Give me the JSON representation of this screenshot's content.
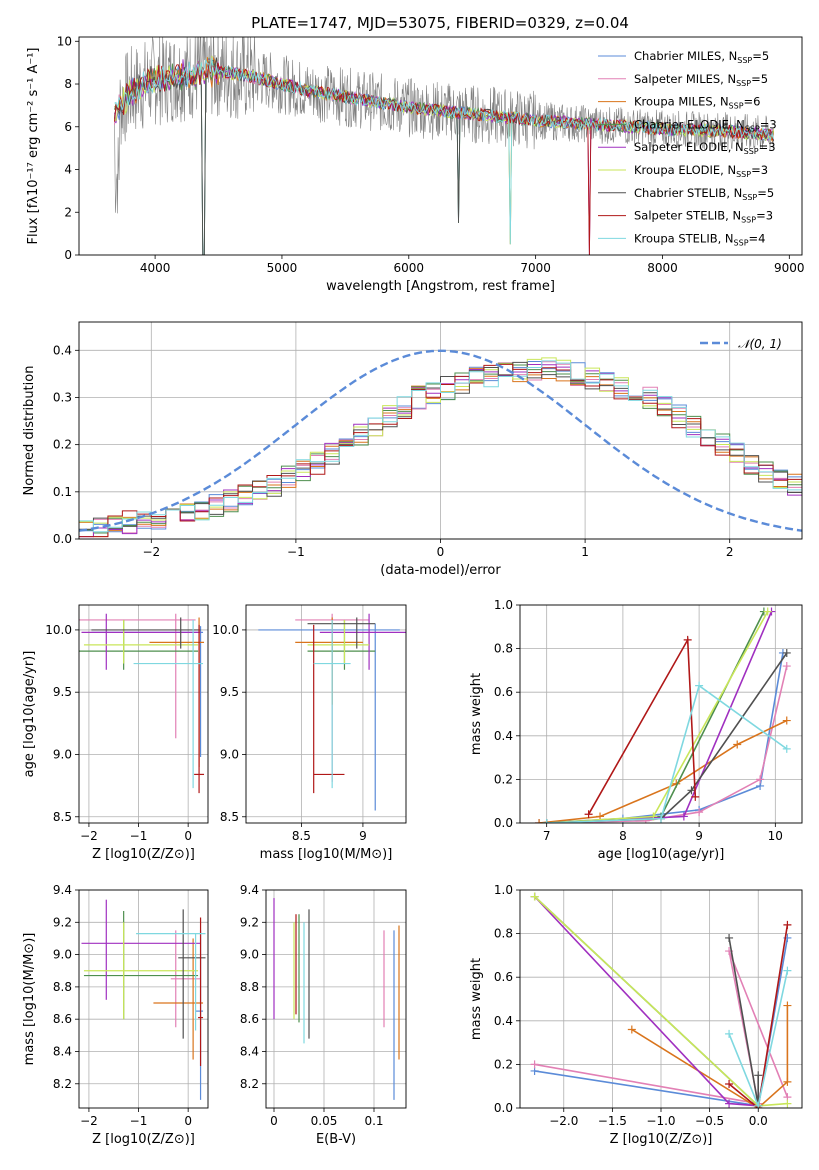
{
  "chart_data": [
    {
      "type": "line",
      "title": "PLATE=1747, MJD=53075, FIBERID=0329, z=0.04",
      "xlabel": "wavelength [Angstrom, rest frame]",
      "ylabel": "Flux [fλ10⁻¹⁷ erg cm⁻² s⁻¹ A⁻¹]",
      "xlim": [
        3400,
        9100
      ],
      "ylim": [
        0,
        10.2
      ],
      "xticks": [
        4000,
        5000,
        6000,
        7000,
        8000,
        9000
      ],
      "yticks": [
        0,
        2,
        4,
        6,
        8,
        10
      ],
      "legend_position": "top-right",
      "data_series": {
        "name": "",
        "color": "#808080",
        "x_range": [
          3680,
          8880
        ],
        "note_values": [
          7.0,
          8.6,
          8.0,
          7.2,
          6.5,
          6.1,
          5.9,
          5.6
        ]
      },
      "series": [
        {
          "label": "Chabrier MILES, N",
          "sub": "SSP",
          "tail": "=5",
          "color": "#5b8bd8"
        },
        {
          "label": "Salpeter MILES, N",
          "sub": "SSP",
          "tail": "=5",
          "color": "#e280b5"
        },
        {
          "label": "Kroupa MILES, N",
          "sub": "SSP",
          "tail": "=6",
          "color": "#d9741c"
        },
        {
          "label": "Chabrier ELODIE, N",
          "sub": "SSP",
          "tail": "=3",
          "color": "#4e8f4e"
        },
        {
          "label": "Salpeter ELODIE, N",
          "sub": "SSP",
          "tail": "=3",
          "color": "#a030c0"
        },
        {
          "label": "Kroupa ELODIE, N",
          "sub": "SSP",
          "tail": "=3",
          "color": "#c9e65a"
        },
        {
          "label": "Chabrier STELIB, N",
          "sub": "SSP",
          "tail": "=5",
          "color": "#505050"
        },
        {
          "label": "Salpeter STELIB, N",
          "sub": "SSP",
          "tail": "=3",
          "color": "#b01818"
        },
        {
          "label": "Kroupa STELIB, N",
          "sub": "SSP",
          "tail": "=4",
          "color": "#7fd8e0"
        }
      ],
      "model_curve": {
        "x": [
          3680,
          3800,
          4000,
          4200,
          4500,
          4800,
          5200,
          5600,
          6000,
          6500,
          7000,
          7500,
          8000,
          8500,
          8880
        ],
        "y": [
          6.6,
          7.6,
          8.2,
          8.4,
          8.6,
          8.3,
          7.7,
          7.3,
          6.9,
          6.6,
          6.3,
          6.1,
          5.9,
          5.8,
          5.6
        ]
      }
    },
    {
      "type": "bar",
      "xlabel": "(data-model)/error",
      "ylabel": "Normed distribution",
      "xlim": [
        -2.5,
        2.5
      ],
      "ylim": [
        0,
        0.46
      ],
      "xticks": [
        -2,
        -1,
        0,
        1,
        2
      ],
      "yticks": [
        0.0,
        0.1,
        0.2,
        0.3,
        0.4
      ],
      "legend": {
        "label": "𝒩(0, 1)",
        "color": "#5b8bd8",
        "position": "top-right"
      },
      "bin_width": 0.1,
      "histogram_shape": [
        0.02,
        0.025,
        0.03,
        0.035,
        0.04,
        0.045,
        0.05,
        0.055,
        0.06,
        0.07,
        0.08,
        0.09,
        0.1,
        0.115,
        0.13,
        0.145,
        0.16,
        0.18,
        0.2,
        0.22,
        0.24,
        0.26,
        0.28,
        0.3,
        0.31,
        0.32,
        0.33,
        0.34,
        0.345,
        0.35,
        0.355,
        0.36,
        0.36,
        0.355,
        0.35,
        0.34,
        0.33,
        0.32,
        0.31,
        0.3,
        0.28,
        0.26,
        0.24,
        0.22,
        0.2,
        0.18,
        0.16,
        0.145,
        0.13,
        0.115
      ]
    },
    {
      "type": "scatter",
      "xlabel": "Z [log10(Z/Z⊙)]",
      "ylabel": "age  [log10(age/yr)]",
      "xlim": [
        -2.2,
        0.4
      ],
      "ylim": [
        8.45,
        10.2
      ],
      "xticks": [
        -2,
        -1,
        0
      ],
      "yticks": [
        8.5,
        9.0,
        9.5,
        10.0
      ],
      "points": [
        {
          "x": 0.25,
          "y": 9.98,
          "xerr": [
            2.2,
            0.05
          ],
          "yerr": [
            1.0,
            0.05
          ],
          "color": "#5b8bd8"
        },
        {
          "x": -0.25,
          "y": 10.08,
          "xerr": [
            2.0,
            0.4
          ],
          "yerr": [
            0.95,
            0.05
          ],
          "color": "#e280b5"
        },
        {
          "x": 0.22,
          "y": 9.9,
          "xerr": [
            1.0,
            0.1
          ],
          "yerr": [
            1.0,
            0.2
          ],
          "color": "#d9741c"
        },
        {
          "x": -1.3,
          "y": 9.83,
          "xerr": [
            0.9,
            1.5
          ],
          "yerr": [
            0.15,
            0.25
          ],
          "color": "#4e8f4e"
        },
        {
          "x": -1.65,
          "y": 9.98,
          "xerr": [
            0.5,
            1.9
          ],
          "yerr": [
            0.3,
            0.15
          ],
          "color": "#a030c0"
        },
        {
          "x": -1.3,
          "y": 9.88,
          "xerr": [
            0.8,
            1.5
          ],
          "yerr": [
            0.15,
            0.2
          ],
          "color": "#c9e65a"
        },
        {
          "x": -0.15,
          "y": 10.0,
          "xerr": [
            1.8,
            0.4
          ],
          "yerr": [
            0.15,
            0.1
          ],
          "color": "#505050"
        },
        {
          "x": 0.22,
          "y": 8.84,
          "xerr": [
            0.1,
            0.1
          ],
          "yerr": [
            0.15,
            1.2
          ],
          "color": "#b01818"
        },
        {
          "x": 0.1,
          "y": 9.73,
          "xerr": [
            1.2,
            0.2
          ],
          "yerr": [
            1.0,
            0.35
          ],
          "color": "#7fd8e0"
        }
      ]
    },
    {
      "type": "scatter",
      "xlabel": "mass [log10(M/M⊙)]",
      "ylabel": "",
      "xlim": [
        8.05,
        9.35
      ],
      "ylim": [
        8.45,
        10.2
      ],
      "xticks": [
        8.5,
        9.0
      ],
      "yticks": [
        8.5,
        9.0,
        9.5,
        10.0
      ],
      "points": [
        {
          "x": 9.1,
          "y": 10.0,
          "xerr": [
            0.95,
            0.2
          ],
          "yerr": [
            1.45,
            0.05
          ],
          "color": "#5b8bd8"
        },
        {
          "x": 8.75,
          "y": 10.08,
          "xerr": [
            0.3,
            0.3
          ],
          "yerr": [
            1.3,
            0.05
          ],
          "color": "#e280b5"
        },
        {
          "x": 8.75,
          "y": 9.9,
          "xerr": [
            0.3,
            0.25
          ],
          "yerr": [
            0.5,
            0.2
          ],
          "color": "#d9741c"
        },
        {
          "x": 8.85,
          "y": 9.83,
          "xerr": [
            0.3,
            0.25
          ],
          "yerr": [
            0.15,
            0.25
          ],
          "color": "#4e8f4e"
        },
        {
          "x": 9.05,
          "y": 9.98,
          "xerr": [
            0.4,
            0.3
          ],
          "yerr": [
            0.3,
            0.15
          ],
          "color": "#a030c0"
        },
        {
          "x": 8.85,
          "y": 9.88,
          "xerr": [
            0.3,
            0.2
          ],
          "yerr": [
            0.15,
            0.2
          ],
          "color": "#c9e65a"
        },
        {
          "x": 8.95,
          "y": 10.05,
          "xerr": [
            0.4,
            0.15
          ],
          "yerr": [
            0.2,
            0.05
          ],
          "color": "#505050"
        },
        {
          "x": 8.6,
          "y": 8.84,
          "xerr": [
            0.0,
            0.25
          ],
          "yerr": [
            0.15,
            1.2
          ],
          "color": "#b01818"
        },
        {
          "x": 8.75,
          "y": 9.73,
          "xerr": [
            0.15,
            0.15
          ],
          "yerr": [
            1.0,
            0.35
          ],
          "color": "#7fd8e0"
        }
      ]
    },
    {
      "type": "line",
      "xlabel": "age  [log10(age/yr)]",
      "ylabel": "mass weight",
      "xlim": [
        6.65,
        10.35
      ],
      "ylim": [
        0,
        1.0
      ],
      "xticks": [
        7,
        8,
        9,
        10
      ],
      "yticks": [
        0.0,
        0.2,
        0.4,
        0.6,
        0.8,
        1.0
      ],
      "series": [
        {
          "color": "#5b8bd8",
          "x": [
            6.9,
            8.0,
            9.0,
            9.8,
            10.1
          ],
          "y": [
            0.0,
            0.02,
            0.06,
            0.17,
            0.78
          ]
        },
        {
          "color": "#e280b5",
          "x": [
            6.9,
            8.3,
            9.0,
            9.8,
            10.15
          ],
          "y": [
            0.0,
            0.01,
            0.05,
            0.2,
            0.72
          ]
        },
        {
          "color": "#d9741c",
          "x": [
            6.9,
            7.7,
            8.7,
            9.5,
            10.15
          ],
          "y": [
            0.0,
            0.03,
            0.18,
            0.36,
            0.47
          ]
        },
        {
          "color": "#4e8f4e",
          "x": [
            7.0,
            8.5,
            9.85
          ],
          "y": [
            0.0,
            0.03,
            0.97
          ]
        },
        {
          "color": "#a030c0",
          "x": [
            7.0,
            8.8,
            9.95
          ],
          "y": [
            0.0,
            0.03,
            0.97
          ]
        },
        {
          "color": "#c9e65a",
          "x": [
            7.0,
            8.4,
            9.9
          ],
          "y": [
            0.0,
            0.03,
            0.97
          ]
        },
        {
          "color": "#505050",
          "x": [
            7.0,
            8.5,
            8.9,
            10.15
          ],
          "y": [
            0.0,
            0.02,
            0.15,
            0.78
          ]
        },
        {
          "color": "#b01818",
          "x": [
            7.55,
            8.85,
            8.95
          ],
          "y": [
            0.04,
            0.84,
            0.12
          ]
        },
        {
          "color": "#7fd8e0",
          "x": [
            7.0,
            8.5,
            9.0,
            10.15
          ],
          "y": [
            0.0,
            0.02,
            0.63,
            0.34
          ]
        }
      ]
    },
    {
      "type": "scatter",
      "xlabel": "Z [log10(Z/Z⊙)]",
      "ylabel": "mass [log10(M/M⊙)]",
      "xlim": [
        -2.2,
        0.4
      ],
      "ylim": [
        8.05,
        9.4
      ],
      "xticks": [
        -2,
        -1,
        0
      ],
      "yticks": [
        8.2,
        8.4,
        8.6,
        8.8,
        9.0,
        9.2,
        9.4
      ],
      "points": [
        {
          "x": 0.25,
          "y": 8.65,
          "xerr": [
            0.1,
            0.05
          ],
          "yerr": [
            0.55,
            0.5
          ],
          "color": "#5b8bd8"
        },
        {
          "x": -0.25,
          "y": 8.85,
          "xerr": [
            0.1,
            0.5
          ],
          "yerr": [
            0.3,
            0.3
          ],
          "color": "#e280b5"
        },
        {
          "x": 0.1,
          "y": 8.7,
          "xerr": [
            0.8,
            0.2
          ],
          "yerr": [
            0.35,
            0.4
          ],
          "color": "#d9741c"
        },
        {
          "x": -1.3,
          "y": 8.87,
          "xerr": [
            0.8,
            1.5
          ],
          "yerr": [
            0.27,
            0.4
          ],
          "color": "#4e8f4e"
        },
        {
          "x": -1.65,
          "y": 9.07,
          "xerr": [
            0.5,
            1.9
          ],
          "yerr": [
            0.35,
            0.27
          ],
          "color": "#a030c0"
        },
        {
          "x": -1.3,
          "y": 8.9,
          "xerr": [
            0.8,
            1.5
          ],
          "yerr": [
            0.3,
            0.3
          ],
          "color": "#c9e65a"
        },
        {
          "x": -0.1,
          "y": 8.98,
          "xerr": [
            0.1,
            0.45
          ],
          "yerr": [
            0.5,
            0.3
          ],
          "color": "#505050"
        },
        {
          "x": 0.25,
          "y": 8.61,
          "xerr": [
            0.05,
            0.05
          ],
          "yerr": [
            0.3,
            0.62
          ],
          "color": "#b01818"
        },
        {
          "x": 0.15,
          "y": 9.13,
          "xerr": [
            1.2,
            0.2
          ],
          "yerr": [
            0.6,
            0.0
          ],
          "color": "#7fd8e0"
        }
      ]
    },
    {
      "type": "scatter",
      "xlabel": "E(B-V)",
      "ylabel": "",
      "xlim": [
        -0.008,
        0.132
      ],
      "ylim": [
        8.05,
        9.4
      ],
      "xticks": [
        0.0,
        0.05,
        0.1
      ],
      "yticks": [
        8.2,
        8.4,
        8.6,
        8.8,
        9.0,
        9.2,
        9.4
      ],
      "points": [
        {
          "x": 0.12,
          "y": 8.65,
          "yerr": [
            0.55,
            0.5
          ],
          "color": "#5b8bd8"
        },
        {
          "x": 0.11,
          "y": 8.85,
          "yerr": [
            0.3,
            0.3
          ],
          "color": "#e280b5"
        },
        {
          "x": 0.125,
          "y": 8.75,
          "yerr": [
            0.4,
            0.43
          ],
          "color": "#d9741c"
        },
        {
          "x": 0.025,
          "y": 8.9,
          "yerr": [
            0.32,
            0.35
          ],
          "color": "#4e8f4e"
        },
        {
          "x": 0.0,
          "y": 9.0,
          "yerr": [
            0.4,
            0.35
          ],
          "color": "#a030c0"
        },
        {
          "x": 0.02,
          "y": 8.9,
          "yerr": [
            0.3,
            0.3
          ],
          "color": "#c9e65a"
        },
        {
          "x": 0.035,
          "y": 8.88,
          "yerr": [
            0.4,
            0.4
          ],
          "color": "#505050"
        },
        {
          "x": 0.022,
          "y": 8.93,
          "yerr": [
            0.3,
            0.32
          ],
          "color": "#b01818"
        },
        {
          "x": 0.03,
          "y": 8.85,
          "yerr": [
            0.4,
            0.35
          ],
          "color": "#7fd8e0"
        }
      ]
    },
    {
      "type": "line",
      "xlabel": "Z [log10(Z/Z⊙)]",
      "ylabel": "mass weight",
      "xlim": [
        -2.45,
        0.45
      ],
      "ylim": [
        0,
        1.0
      ],
      "xticks": [
        -2.0,
        -1.5,
        -1.0,
        -0.5,
        0.0
      ],
      "yticks": [
        0.0,
        0.2,
        0.4,
        0.6,
        0.8,
        1.0
      ],
      "series": [
        {
          "color": "#5b8bd8",
          "x": [
            -2.3,
            0.0,
            0.3
          ],
          "y": [
            0.17,
            0.01,
            0.78
          ]
        },
        {
          "color": "#e280b5",
          "x": [
            -2.3,
            0.0,
            -0.3,
            0.3
          ],
          "y": [
            0.2,
            0.02,
            0.72,
            0.05
          ]
        },
        {
          "color": "#d9741c",
          "x": [
            -1.3,
            0.0,
            0.3,
            0.3
          ],
          "y": [
            0.36,
            0.0,
            0.12,
            0.47
          ]
        },
        {
          "color": "#4e8f4e",
          "x": [
            -2.3,
            0.0
          ],
          "y": [
            0.97,
            0.01
          ]
        },
        {
          "color": "#a030c0",
          "x": [
            -2.3,
            -0.3,
            0.0
          ],
          "y": [
            0.97,
            0.02,
            0.01
          ]
        },
        {
          "color": "#c9e65a",
          "x": [
            -2.3,
            0.0,
            0.3
          ],
          "y": [
            0.97,
            0.01,
            0.02
          ]
        },
        {
          "color": "#505050",
          "x": [
            -0.3,
            0.0,
            0.0
          ],
          "y": [
            0.78,
            0.01,
            0.15
          ]
        },
        {
          "color": "#b01818",
          "x": [
            -0.3,
            0.0,
            0.3
          ],
          "y": [
            0.11,
            0.0,
            0.84
          ]
        },
        {
          "color": "#7fd8e0",
          "x": [
            -0.3,
            0.0,
            0.3
          ],
          "y": [
            0.34,
            0.01,
            0.63
          ]
        }
      ]
    }
  ]
}
